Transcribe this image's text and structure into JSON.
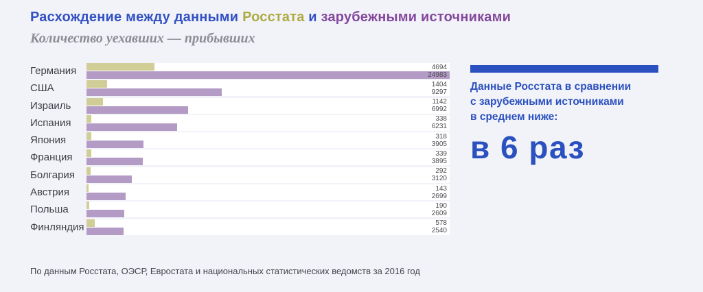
{
  "page": {
    "background_color": "#f1f3f9"
  },
  "header": {
    "title_parts": [
      {
        "text": "Расхождение между данными ",
        "color": "#3351c3"
      },
      {
        "text": "Росстата",
        "color": "#aeab43"
      },
      {
        "text": " и ",
        "color": "#3351c3"
      },
      {
        "text": "зарубежными источниками",
        "color": "#84489c"
      }
    ],
    "subtitle": "Количество уехавших — прибывших"
  },
  "chart_data": {
    "type": "bar",
    "orientation": "horizontal",
    "title": "Расхождение между данными Росстата и зарубежными источниками",
    "subtitle": "Количество уехавших — прибывших",
    "categories": [
      "Германия",
      "США",
      "Израиль",
      "Испания",
      "Япония",
      "Франция",
      "Болгария",
      "Австрия",
      "Польша",
      "Финляндия"
    ],
    "series": [
      {
        "name": "Росстат",
        "color": "#d1cd96",
        "values": [
          4694,
          1404,
          1142,
          338,
          318,
          339,
          292,
          143,
          190,
          578
        ]
      },
      {
        "name": "Зарубежные источники",
        "color": "#b49bc5",
        "values": [
          24983,
          9297,
          6992,
          6231,
          3905,
          3895,
          3120,
          2699,
          2609,
          2540
        ]
      }
    ],
    "xlim": [
      0,
      24983
    ],
    "value_labels": true,
    "grid": false,
    "legend": "none",
    "track_background": "#ffffff"
  },
  "callout": {
    "accent_color": "#2b50bf",
    "text_lines": [
      "Данные Росстата в сравнении",
      "с зарубежными источниками",
      "в среднем ниже:"
    ],
    "big_text": "в 6 раз"
  },
  "footer": {
    "source": "По данным Росстата, ОЭСР, Евростата и национальных статистических ведомств за 2016 год"
  }
}
